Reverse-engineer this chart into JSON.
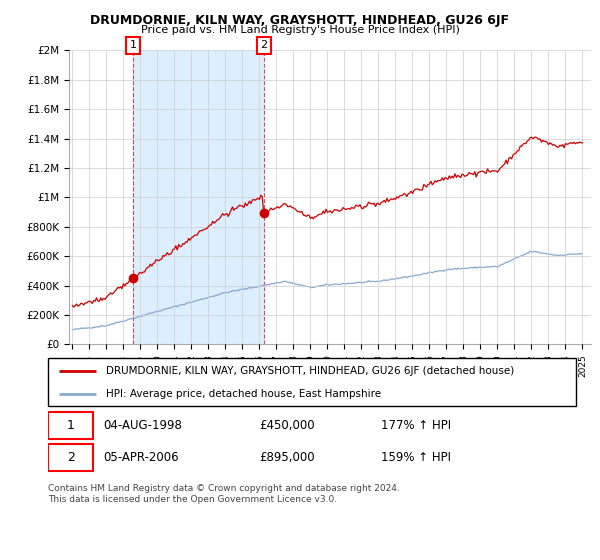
{
  "title": "DRUMDORNIE, KILN WAY, GRAYSHOTT, HINDHEAD, GU26 6JF",
  "subtitle": "Price paid vs. HM Land Registry's House Price Index (HPI)",
  "ylabel_ticks": [
    "£0",
    "£200K",
    "£400K",
    "£600K",
    "£800K",
    "£1M",
    "£1.2M",
    "£1.4M",
    "£1.6M",
    "£1.8M",
    "£2M"
  ],
  "ytick_values": [
    0,
    200000,
    400000,
    600000,
    800000,
    1000000,
    1200000,
    1400000,
    1600000,
    1800000,
    2000000
  ],
  "ylim": [
    0,
    2000000
  ],
  "xlim_start": 1994.8,
  "xlim_end": 2025.5,
  "xtick_years": [
    1995,
    1996,
    1997,
    1998,
    1999,
    2000,
    2001,
    2002,
    2003,
    2004,
    2005,
    2006,
    2007,
    2008,
    2009,
    2010,
    2011,
    2012,
    2013,
    2014,
    2015,
    2016,
    2017,
    2018,
    2019,
    2020,
    2021,
    2022,
    2023,
    2024,
    2025
  ],
  "red_line_color": "#cc0000",
  "blue_line_color": "#88aacc",
  "shade_color": "#ddeeff",
  "sale1_x": 1998.58,
  "sale1_y": 450000,
  "sale2_x": 2006.25,
  "sale2_y": 895000,
  "legend_red_label": "DRUMDORNIE, KILN WAY, GRAYSHOTT, HINDHEAD, GU26 6JF (detached house)",
  "legend_blue_label": "HPI: Average price, detached house, East Hampshire",
  "table_row1": [
    "1",
    "04-AUG-1998",
    "£450,000",
    "177% ↑ HPI"
  ],
  "table_row2": [
    "2",
    "05-APR-2006",
    "£895,000",
    "159% ↑ HPI"
  ],
  "footer": "Contains HM Land Registry data © Crown copyright and database right 2024.\nThis data is licensed under the Open Government Licence v3.0.",
  "background_color": "#ffffff",
  "grid_color": "#cccccc"
}
